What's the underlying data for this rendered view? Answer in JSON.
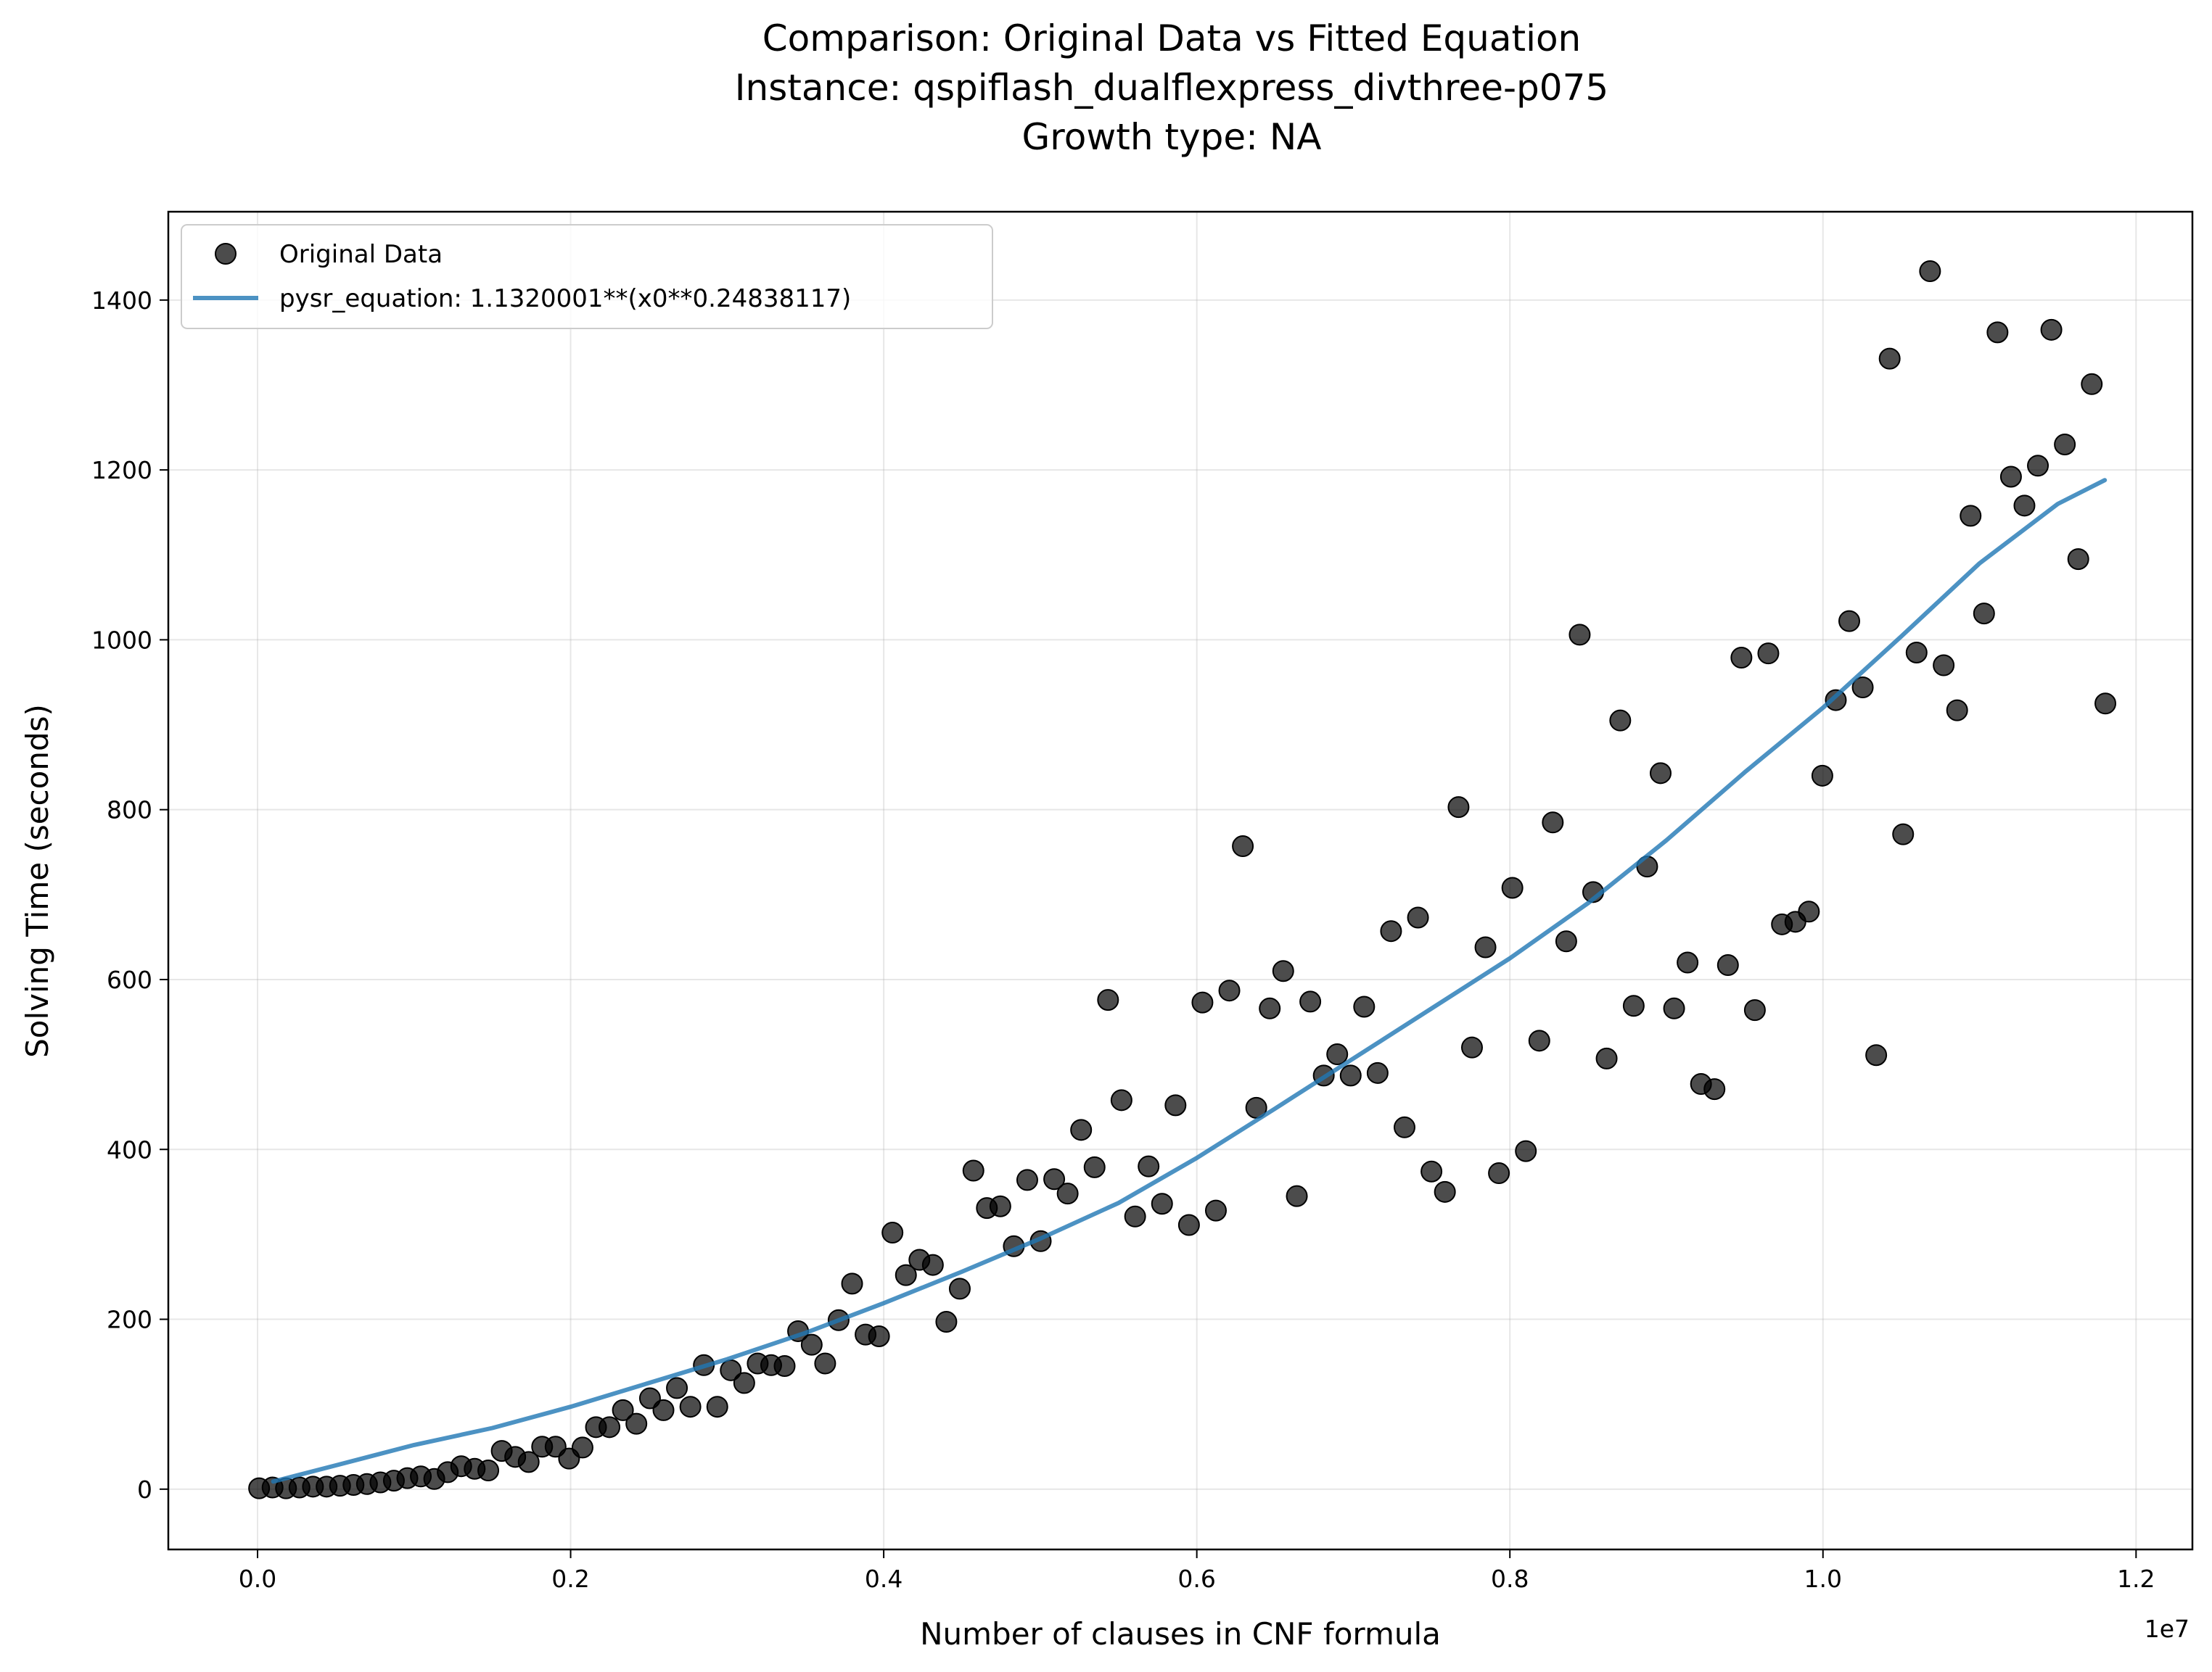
{
  "chart_data": {
    "type": "scatter",
    "title_lines": [
      "Comparison: Original Data vs Fitted Equation",
      "Instance: qspiflash_dualflexpress_divthree-p075",
      "Growth type: NA"
    ],
    "xlabel": "Number of clauses in CNF formula",
    "ylabel": "Solving Time (seconds)",
    "x_offset_label": "1e7",
    "xlim": [
      -0.057,
      1.236
    ],
    "ylim": [
      -71,
      1504
    ],
    "x_ticks": [
      0.0,
      0.2,
      0.4,
      0.6,
      0.8,
      1.0,
      1.2
    ],
    "x_tick_labels": [
      "0.0",
      "0.2",
      "0.4",
      "0.6",
      "0.8",
      "1.0",
      "1.2"
    ],
    "y_ticks": [
      0,
      200,
      400,
      600,
      800,
      1000,
      1200,
      1400
    ],
    "y_tick_labels": [
      "0",
      "200",
      "400",
      "600",
      "800",
      "1000",
      "1200",
      "1400"
    ],
    "grid": true,
    "legend_position": "upper-left",
    "series": [
      {
        "name": "Original Data",
        "kind": "scatter",
        "color": "#000000",
        "x": [
          0.001,
          0.0096,
          0.0182,
          0.0268,
          0.0354,
          0.0441,
          0.0527,
          0.0613,
          0.0699,
          0.0785,
          0.0871,
          0.0957,
          0.1043,
          0.1129,
          0.1215,
          0.1301,
          0.1387,
          0.1474,
          0.156,
          0.1646,
          0.1732,
          0.1818,
          0.1904,
          0.199,
          0.2076,
          0.2162,
          0.2248,
          0.2334,
          0.242,
          0.2507,
          0.2593,
          0.2679,
          0.2765,
          0.2851,
          0.2937,
          0.3023,
          0.3109,
          0.3195,
          0.3281,
          0.3367,
          0.3453,
          0.354,
          0.3626,
          0.3712,
          0.3798,
          0.3884,
          0.397,
          0.4056,
          0.4142,
          0.4228,
          0.4314,
          0.44,
          0.4486,
          0.4573,
          0.4659,
          0.4745,
          0.4831,
          0.4917,
          0.5003,
          0.5089,
          0.5175,
          0.5261,
          0.5347,
          0.5433,
          0.5519,
          0.5606,
          0.5692,
          0.5778,
          0.5864,
          0.595,
          0.6036,
          0.6122,
          0.6208,
          0.6294,
          0.638,
          0.6466,
          0.6552,
          0.6639,
          0.6725,
          0.6811,
          0.6897,
          0.6983,
          0.7069,
          0.7155,
          0.7241,
          0.7327,
          0.7413,
          0.7499,
          0.7585,
          0.7672,
          0.7758,
          0.7844,
          0.793,
          0.8016,
          0.8102,
          0.8188,
          0.8274,
          0.836,
          0.8446,
          0.8532,
          0.8618,
          0.8705,
          0.8791,
          0.8877,
          0.8963,
          0.9049,
          0.9135,
          0.9221,
          0.9307,
          0.9393,
          0.9479,
          0.9565,
          0.9651,
          0.9738,
          0.9824,
          0.991,
          0.9996,
          1.0082,
          1.0168,
          1.0254,
          1.034,
          1.0426,
          1.0512,
          1.0598,
          1.0684,
          1.0771,
          1.0857,
          1.0943,
          1.1029,
          1.1115,
          1.1201,
          1.1287,
          1.1373,
          1.1459,
          1.1545,
          1.1631,
          1.1717,
          1.1804
        ],
        "y": [
          1,
          2,
          1,
          2,
          3,
          3,
          4,
          5,
          6,
          8,
          10,
          13,
          15,
          12,
          20,
          27,
          24,
          22,
          45,
          38,
          32,
          50,
          50,
          36,
          49,
          73,
          73,
          93,
          77,
          107,
          93,
          119,
          97,
          146,
          97,
          140,
          125,
          148,
          146,
          145,
          186,
          170,
          148,
          199,
          242,
          182,
          180,
          302,
          252,
          270,
          264,
          197,
          236,
          375,
          331,
          333,
          286,
          364,
          292,
          365,
          348,
          423,
          379,
          576,
          458,
          321,
          380,
          336,
          452,
          311,
          573,
          328,
          587,
          757,
          449,
          566,
          610,
          345,
          574,
          487,
          512,
          487,
          568,
          490,
          657,
          426,
          673,
          374,
          350,
          803,
          520,
          638,
          372,
          708,
          398,
          528,
          785,
          645,
          1006,
          703,
          507,
          905,
          569,
          733,
          843,
          566,
          620,
          477,
          471,
          617,
          979,
          564,
          984,
          665,
          668,
          680,
          840,
          929,
          1022,
          944,
          511,
          1331,
          771,
          985,
          1434,
          970,
          917,
          1146,
          1031,
          1362,
          1192,
          1158,
          1205,
          1365,
          1230,
          1095,
          1301,
          925
        ],
        "marker_size": 11
      },
      {
        "name": "pysr_equation: 1.1320001**(x0**0.24838117)",
        "kind": "line",
        "color": "#1f77b4",
        "x": [
          0.01,
          0.05,
          0.1,
          0.15,
          0.2,
          0.25,
          0.3,
          0.35,
          0.4,
          0.45,
          0.5,
          0.55,
          0.6,
          0.65,
          0.7,
          0.75,
          0.8,
          0.85,
          0.9,
          0.95,
          1.0,
          1.05,
          1.1,
          1.15,
          1.18
        ],
        "y": [
          9,
          28,
          52,
          72,
          97,
          125,
          153,
          184,
          219,
          256,
          295,
          337,
          390,
          448,
          507,
          566,
          625,
          690,
          764,
          844,
          920,
          1004,
          1090,
          1160,
          1188
        ]
      }
    ]
  }
}
